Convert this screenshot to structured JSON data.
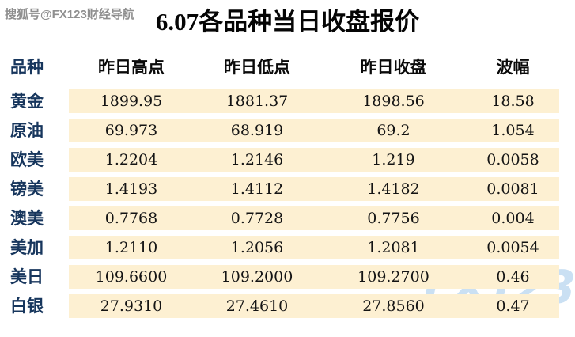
{
  "watermarks": {
    "top_left": "搜狐号@FX123财经导航",
    "bottom_right": "FX123"
  },
  "title": "6.07各品种当日收盘报价",
  "colors": {
    "row_band": "#fdf0d2",
    "label_navy": "#17365d",
    "number_text": "#141414",
    "watermark_blue": "#9ec6e9"
  },
  "table": {
    "headers": [
      "品种",
      "昨日高点",
      "昨日低点",
      "昨日收盘",
      "波幅"
    ],
    "rows": [
      {
        "name": "黄金",
        "high": "1899.95",
        "low": "1881.37",
        "close": "1898.56",
        "range": "18.58"
      },
      {
        "name": "原油",
        "high": "69.973",
        "low": "68.919",
        "close": "69.2",
        "range": "1.054"
      },
      {
        "name": "欧美",
        "high": "1.2204",
        "low": "1.2146",
        "close": "1.219",
        "range": "0.0058"
      },
      {
        "name": "镑美",
        "high": "1.4193",
        "low": "1.4112",
        "close": "1.4182",
        "range": "0.0081"
      },
      {
        "name": "澳美",
        "high": "0.7768",
        "low": "0.7728",
        "close": "0.7756",
        "range": "0.004"
      },
      {
        "name": "美加",
        "high": "1.2110",
        "low": "1.2056",
        "close": "1.2081",
        "range": "0.0054"
      },
      {
        "name": "美日",
        "high": "109.6600",
        "low": "109.2000",
        "close": "109.2700",
        "range": "0.46"
      },
      {
        "name": "白银",
        "high": "27.9310",
        "low": "27.4610",
        "close": "27.8560",
        "range": "0.47"
      }
    ]
  }
}
